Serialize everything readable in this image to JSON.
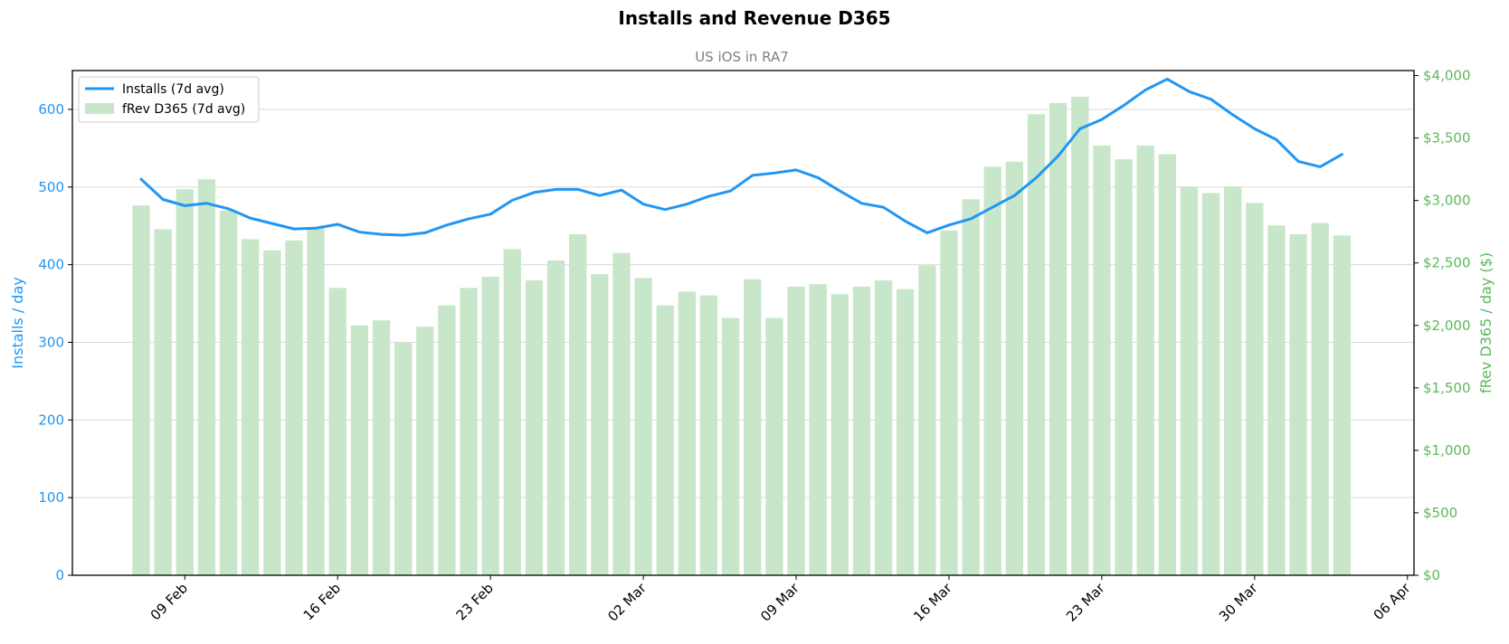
{
  "chart_data": {
    "type": "bar+line",
    "title": "Installs and Revenue D365",
    "subtitle": "US iOS in RA7",
    "x_tick_labels": [
      "09 Feb",
      "16 Feb",
      "23 Feb",
      "02 Mar",
      "09 Mar",
      "16 Mar",
      "23 Mar",
      "30 Mar",
      "06 Apr"
    ],
    "x_tick_days": [
      0,
      7,
      14,
      21,
      28,
      35,
      42,
      49,
      56
    ],
    "x_start_offset_days": -2,
    "x_range_days": [
      -5.15,
      56.3
    ],
    "ylabel_left": "Installs / day",
    "ylabel_right": "fRev D365 / day ($)",
    "y_left_ticks": [
      "0",
      "100",
      "200",
      "300",
      "400",
      "500",
      "600"
    ],
    "y_right_ticks": [
      "$0",
      "$500",
      "$1,000",
      "$1,500",
      "$2,000",
      "$2,500",
      "$3,000",
      "$3,500",
      "$4,000"
    ],
    "ylim_left": [
      0,
      650
    ],
    "ylim_right": [
      0,
      4040
    ],
    "grid": "horizontal",
    "legend_position": "top-left",
    "series": [
      {
        "name": "Installs (7d avg)",
        "type": "line",
        "axis": "left",
        "color": "#2196f3",
        "values": [
          510,
          484,
          476,
          479,
          472,
          460,
          453,
          446,
          447,
          452,
          442,
          439,
          438,
          441,
          451,
          459,
          465,
          483,
          493,
          497,
          497,
          489,
          496,
          478,
          471,
          478,
          488,
          495,
          515,
          518,
          522,
          512,
          495,
          479,
          474,
          456,
          441,
          451,
          459,
          474,
          489,
          512,
          540,
          575,
          587,
          605,
          625,
          639,
          623,
          613,
          593,
          575,
          561,
          533,
          526,
          542
        ]
      },
      {
        "name": "fRev D365 (7d avg)",
        "type": "bar",
        "axis": "right",
        "color": "#c8e6c9",
        "values": [
          2960,
          2770,
          3090,
          3170,
          2920,
          2690,
          2600,
          2680,
          2780,
          2300,
          2000,
          2040,
          1860,
          1990,
          2160,
          2300,
          2390,
          2610,
          2360,
          2520,
          2730,
          2410,
          2580,
          2380,
          2160,
          2270,
          2240,
          2060,
          2370,
          2060,
          2310,
          2330,
          2250,
          2310,
          2360,
          2290,
          2480,
          2760,
          3010,
          3270,
          3310,
          3690,
          3780,
          3830,
          3440,
          3330,
          3440,
          3370,
          3110,
          3060,
          3110,
          2980,
          2800,
          2730,
          2820,
          2720
        ]
      }
    ]
  }
}
